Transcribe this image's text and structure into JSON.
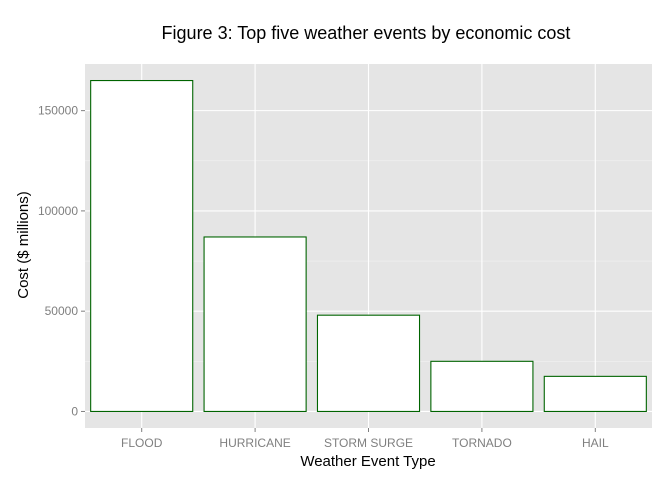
{
  "chart_data": {
    "type": "bar",
    "title": "Figure 3: Top five weather events by economic cost",
    "xlabel": "Weather Event Type",
    "ylabel": "Cost ($ millions)",
    "categories": [
      "FLOOD",
      "HURRICANE",
      "STORM SURGE",
      "TORNADO",
      "HAIL"
    ],
    "values": [
      165000,
      87000,
      48000,
      25000,
      17500
    ],
    "ylim": [
      -8250,
      173250
    ],
    "yticks": [
      0,
      50000,
      100000,
      150000
    ],
    "ytick_labels": [
      "0",
      "50000",
      "100000",
      "150000"
    ],
    "grid": true,
    "legend": "none",
    "colors": {
      "panel_background": "#e5e5e5",
      "grid_major": "#ffffff",
      "grid_minor": "#f2f2f2",
      "bar_fill": "#ffffff",
      "bar_outline": "#006400",
      "tick_text": "#7f7f7f",
      "title_text": "#000000"
    }
  }
}
